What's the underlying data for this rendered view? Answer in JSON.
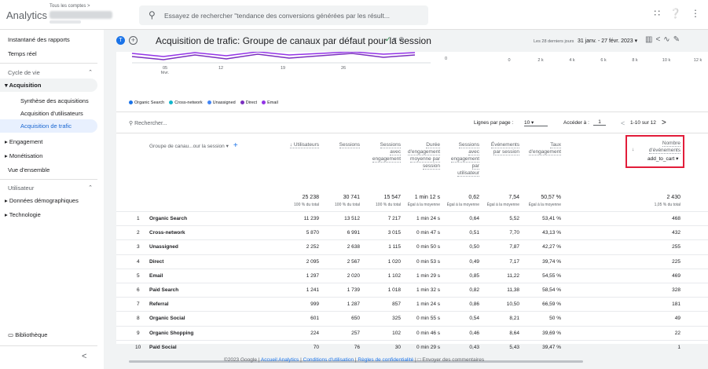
{
  "app": {
    "brand": "Analytics",
    "account_label": "Tous les comptes >",
    "search_placeholder": "Essayez de rechercher \"tendance des conversions générées par les résult..."
  },
  "icons": {
    "apps": "apps-grid-icon",
    "help": "help-icon",
    "more": "more-vert-icon"
  },
  "sidebar": {
    "items": [
      {
        "label": "Instantané des rapports"
      },
      {
        "label": "Temps réel"
      }
    ],
    "section_lifecycle": "Cycle de vie",
    "acquisition": "Acquisition",
    "acq_subitems": [
      {
        "label": "Synthèse des acquisitions"
      },
      {
        "label": "Acquisition d'utilisateurs"
      },
      {
        "label": "Acquisition de trafic"
      }
    ],
    "lifecycle_items": [
      {
        "label": "Engagement"
      },
      {
        "label": "Monétisation"
      },
      {
        "label": "Vue d'ensemble"
      }
    ],
    "section_user": "Utilisateur",
    "user_items": [
      {
        "label": "Données démographiques"
      },
      {
        "label": "Technologie"
      }
    ],
    "library": "Bibliothèque",
    "collapse": "<"
  },
  "header": {
    "badge": "T",
    "title": "Acquisition de trafic: Groupe de canaux par défaut pour la session",
    "date_label": "Les 28 derniers jours",
    "date_range": "31 janv. - 27 févr. 2023 ▾"
  },
  "chart_data": {
    "type": "line",
    "x_ticks": [
      "05 févr.",
      "12",
      "19",
      "26"
    ],
    "x_axis_right_ticks": [
      "0",
      "2 k",
      "4 k",
      "6 k",
      "8 k",
      "10 k",
      "12 k"
    ],
    "series": [
      {
        "name": "Organic Search",
        "color": "#1a73e8"
      },
      {
        "name": "Cross-network",
        "color": "#12b5cb"
      },
      {
        "name": "Unassigned",
        "color": "#4285f4"
      },
      {
        "name": "Direct",
        "color": "#7b2fbf"
      },
      {
        "name": "Email",
        "color": "#9334e6"
      }
    ]
  },
  "table": {
    "search_placeholder": "Rechercher...",
    "rows_per_page_label": "Lignes par page :",
    "rows_per_page": "10",
    "goto_label": "Accéder à :",
    "goto_value": "1",
    "range": "1-10 sur 12",
    "dimension_header": "Groupe de canau...our la session",
    "columns": [
      {
        "label": "↓ Utilisateurs",
        "total": "25 238",
        "total_sub": "100 % du total"
      },
      {
        "label": "Sessions",
        "total": "30 741",
        "total_sub": "100 % du total"
      },
      {
        "label": "Sessions avec engagement",
        "total": "15 547",
        "total_sub": "100 % du total"
      },
      {
        "label": "Durée d'engagement moyenne par session",
        "total": "1 min 12 s",
        "total_sub": "Égal à la moyenne"
      },
      {
        "label": "Sessions avec engagement par utilisateur",
        "total": "0,62",
        "total_sub": "Égal à la moyenne"
      },
      {
        "label": "Événements par session",
        "total": "7,54",
        "total_sub": "Égal à la moyenne"
      },
      {
        "label": "Taux d'engagement",
        "total": "50,57 %",
        "total_sub": "Égal à la moyenne"
      },
      {
        "label": "Nombre d'événements",
        "total": "2 430",
        "total_sub": "1,05 % du total"
      }
    ],
    "metric_select": "add_to_cart ▾",
    "rows": [
      {
        "idx": "1",
        "dim": "Organic Search",
        "v": [
          "11 239",
          "13 512",
          "7 217",
          "1 min 24 s",
          "0,64",
          "5,52",
          "53,41 %",
          "468"
        ]
      },
      {
        "idx": "2",
        "dim": "Cross-network",
        "v": [
          "5 870",
          "6 991",
          "3 015",
          "0 min 47 s",
          "0,51",
          "7,70",
          "43,13 %",
          "432"
        ]
      },
      {
        "idx": "3",
        "dim": "Unassigned",
        "v": [
          "2 252",
          "2 638",
          "1 115",
          "0 min 50 s",
          "0,50",
          "7,87",
          "42,27 %",
          "255"
        ]
      },
      {
        "idx": "4",
        "dim": "Direct",
        "v": [
          "2 095",
          "2 567",
          "1 020",
          "0 min 53 s",
          "0,49",
          "7,17",
          "39,74 %",
          "225"
        ]
      },
      {
        "idx": "5",
        "dim": "Email",
        "v": [
          "1 297",
          "2 020",
          "1 102",
          "1 min 29 s",
          "0,85",
          "11,22",
          "54,55 %",
          "469"
        ]
      },
      {
        "idx": "6",
        "dim": "Paid Search",
        "v": [
          "1 241",
          "1 739",
          "1 018",
          "1 min 32 s",
          "0,82",
          "11,38",
          "58,54 %",
          "328"
        ]
      },
      {
        "idx": "7",
        "dim": "Referral",
        "v": [
          "999",
          "1 287",
          "857",
          "1 min 24 s",
          "0,86",
          "10,50",
          "66,59 %",
          "181"
        ]
      },
      {
        "idx": "8",
        "dim": "Organic Social",
        "v": [
          "601",
          "650",
          "325",
          "0 min 55 s",
          "0,54",
          "8,21",
          "50 %",
          "49"
        ]
      },
      {
        "idx": "9",
        "dim": "Organic Shopping",
        "v": [
          "224",
          "257",
          "102",
          "0 min 46 s",
          "0,46",
          "8,64",
          "39,69 %",
          "22"
        ]
      },
      {
        "idx": "10",
        "dim": "Paid Social",
        "v": [
          "70",
          "76",
          "30",
          "0 min 29 s",
          "0,43",
          "5,43",
          "39,47 %",
          "1"
        ]
      }
    ]
  },
  "footer": {
    "copyright": "©2023 Google | ",
    "link1": "Accueil Analytics",
    "link2": "Conditions d'utilisation",
    "link3": "Règles de confidentialité",
    "feedback": "Envoyer des commentaires"
  }
}
